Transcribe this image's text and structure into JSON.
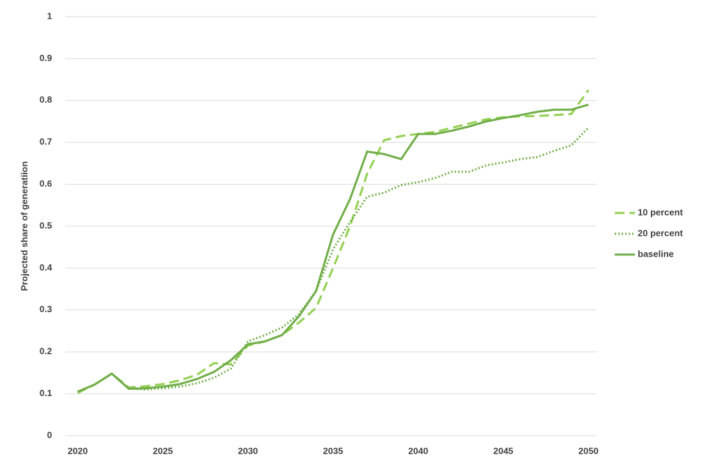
{
  "chart_data": {
    "type": "line",
    "y_label": "Projected share of generatiion",
    "x": [
      2020,
      2021,
      2022,
      2023,
      2024,
      2025,
      2026,
      2027,
      2028,
      2029,
      2030,
      2031,
      2032,
      2033,
      2034,
      2035,
      2036,
      2037,
      2038,
      2039,
      2040,
      2041,
      2042,
      2043,
      2044,
      2045,
      2046,
      2047,
      2048,
      2049,
      2050
    ],
    "series": [
      {
        "name": "10 percent",
        "color": "#92d050",
        "dash": "dashed",
        "values": [
          0.102,
          0.122,
          0.148,
          0.115,
          0.118,
          0.123,
          0.132,
          0.145,
          0.173,
          0.17,
          0.215,
          0.225,
          0.24,
          0.27,
          0.305,
          0.4,
          0.5,
          0.625,
          0.705,
          0.715,
          0.72,
          0.725,
          0.735,
          0.745,
          0.755,
          0.76,
          0.762,
          0.763,
          0.765,
          0.768,
          0.825
        ]
      },
      {
        "name": "20 percent",
        "color": "#70ad47",
        "dash": "dotted",
        "values": [
          0.105,
          0.122,
          0.148,
          0.112,
          0.11,
          0.113,
          0.117,
          0.125,
          0.138,
          0.16,
          0.225,
          0.24,
          0.258,
          0.29,
          0.345,
          0.445,
          0.51,
          0.57,
          0.58,
          0.598,
          0.605,
          0.615,
          0.63,
          0.63,
          0.645,
          0.652,
          0.66,
          0.665,
          0.68,
          0.693,
          0.735
        ]
      },
      {
        "name": "baseline",
        "color": "#70ad47",
        "dash": "solid",
        "values": [
          0.105,
          0.122,
          0.148,
          0.112,
          0.113,
          0.117,
          0.123,
          0.135,
          0.152,
          0.18,
          0.218,
          0.225,
          0.24,
          0.285,
          0.345,
          0.48,
          0.565,
          0.678,
          0.672,
          0.66,
          0.72,
          0.72,
          0.728,
          0.738,
          0.75,
          0.758,
          0.765,
          0.773,
          0.778,
          0.778,
          0.79
        ]
      }
    ],
    "xlim": [
      2020,
      2050
    ],
    "xticks": [
      2020,
      2025,
      2030,
      2035,
      2040,
      2045,
      2050
    ],
    "ylim": [
      0,
      1
    ],
    "yticks": [
      0,
      0.1,
      0.2,
      0.3,
      0.4,
      0.5,
      0.6,
      0.7,
      0.8,
      0.9,
      1
    ],
    "grid": true,
    "legend": "right"
  }
}
